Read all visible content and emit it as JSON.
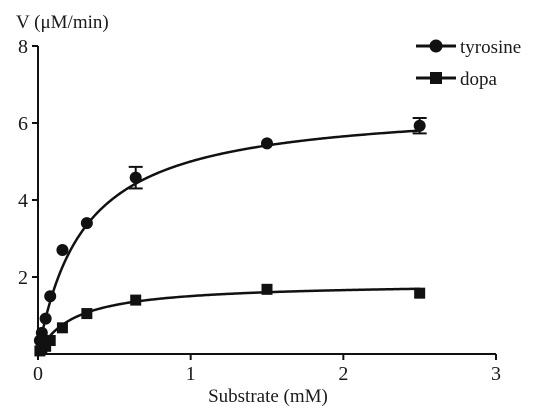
{
  "chart_data": {
    "type": "scatter",
    "title": "",
    "xlabel": "Substrate (mM)",
    "ylabel": "V (μM/min)",
    "xlim": [
      0,
      3
    ],
    "ylim": [
      0,
      8
    ],
    "x_ticks": [
      0,
      1,
      2,
      3
    ],
    "y_ticks": [
      2,
      4,
      6,
      8
    ],
    "x_tick_labels": [
      "0",
      "1",
      "2",
      "3"
    ],
    "y_tick_labels": [
      "2",
      "4",
      "6",
      "8"
    ],
    "grid": false,
    "legend_position": "top-right",
    "series": [
      {
        "name": "tyrosine",
        "marker": "circle",
        "color": "#111111",
        "x": [
          0.0125,
          0.025,
          0.05,
          0.08,
          0.16,
          0.32,
          0.64,
          1.5,
          2.5
        ],
        "y": [
          0.35,
          0.55,
          0.92,
          1.5,
          2.7,
          3.4,
          4.58,
          5.47,
          5.93
        ],
        "error": [
          0,
          0,
          0,
          0,
          0,
          0,
          0.28,
          0,
          0.2
        ],
        "fit": {
          "model": "michaelis-menten",
          "vmax": 6.5,
          "km": 0.3
        }
      },
      {
        "name": "dopa",
        "marker": "square",
        "color": "#111111",
        "x": [
          0.0125,
          0.025,
          0.05,
          0.08,
          0.16,
          0.32,
          0.64,
          1.5,
          2.5
        ],
        "y": [
          0.08,
          0.15,
          0.2,
          0.35,
          0.68,
          1.05,
          1.4,
          1.68,
          1.58
        ],
        "error": [
          0,
          0,
          0,
          0,
          0,
          0,
          0,
          0,
          0
        ],
        "fit": {
          "model": "michaelis-menten",
          "vmax": 1.85,
          "km": 0.23
        }
      }
    ]
  }
}
